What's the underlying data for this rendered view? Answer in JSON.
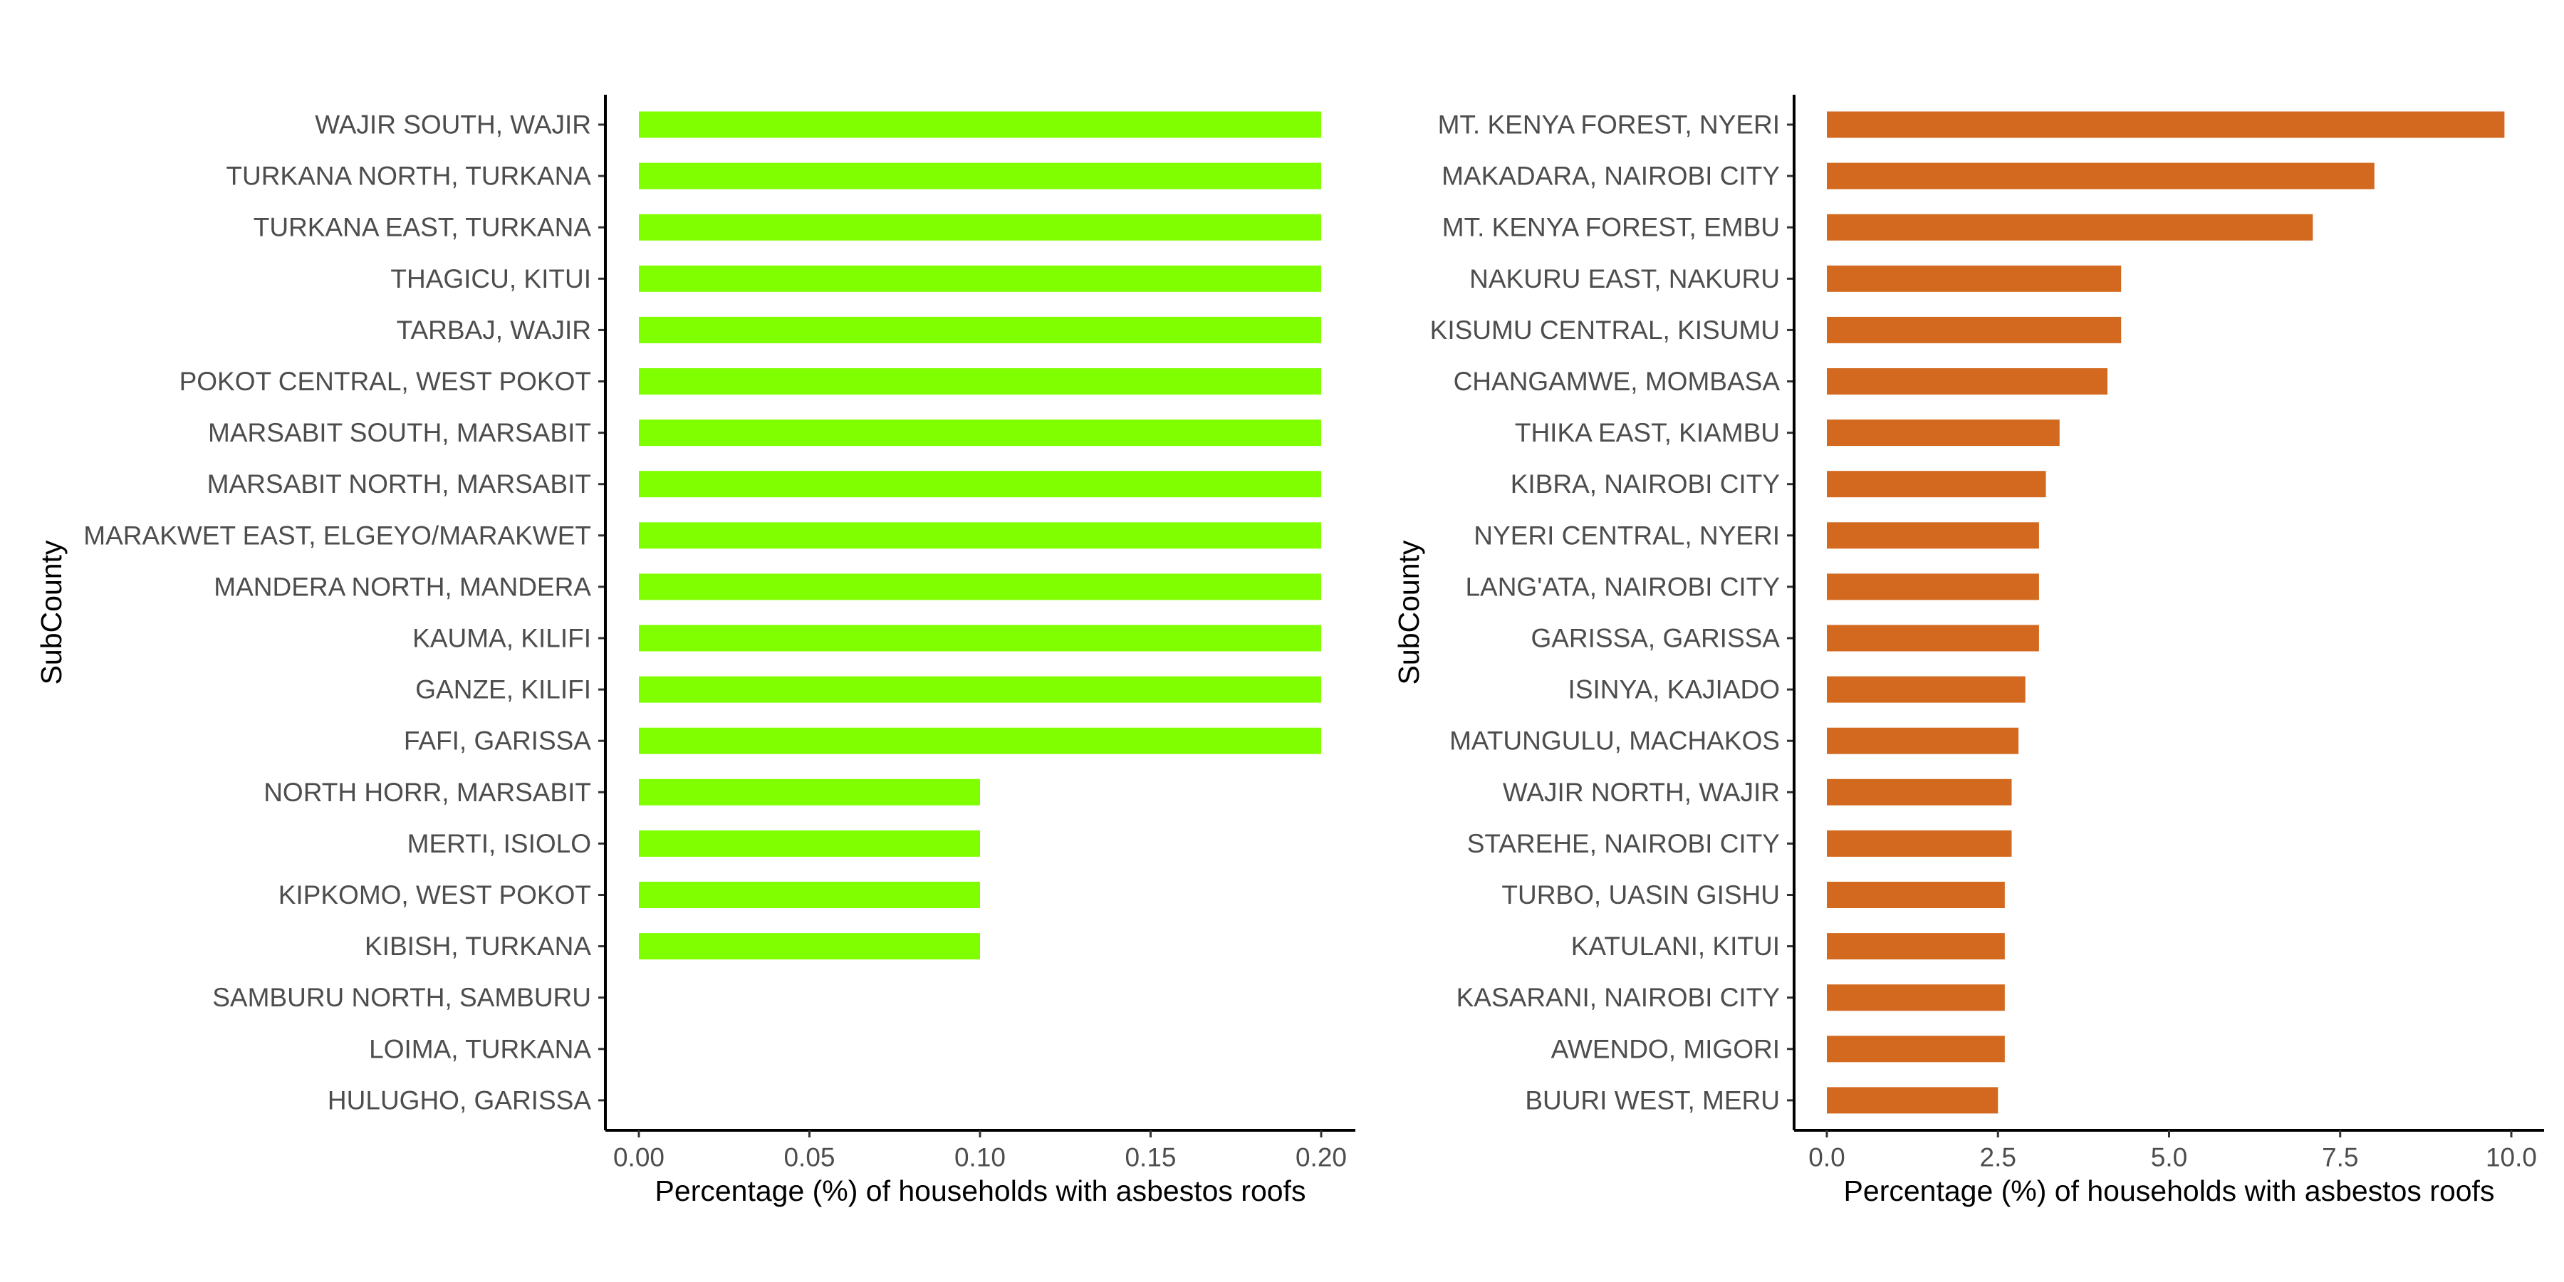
{
  "chart_data": [
    {
      "type": "bar",
      "orientation": "horizontal",
      "xlabel": "Percentage (%) of households with asbestos roofs",
      "ylabel": "SubCounty",
      "xlim": [
        0,
        0.2
      ],
      "xticks": [
        "0.00",
        "0.05",
        "0.10",
        "0.15",
        "0.20"
      ],
      "xtick_values": [
        0,
        0.05,
        0.1,
        0.15,
        0.2
      ],
      "grid": false,
      "bar_color": "#7FFF00",
      "categories": [
        "WAJIR SOUTH, WAJIR",
        "TURKANA NORTH, TURKANA",
        "TURKANA EAST, TURKANA",
        "THAGICU, KITUI",
        "TARBAJ, WAJIR",
        "POKOT CENTRAL, WEST POKOT",
        "MARSABIT SOUTH, MARSABIT",
        "MARSABIT NORTH, MARSABIT",
        "MARAKWET EAST, ELGEYO/MARAKWET",
        "MANDERA NORTH, MANDERA",
        "KAUMA, KILIFI",
        "GANZE, KILIFI",
        "FAFI, GARISSA",
        "NORTH HORR, MARSABIT",
        "MERTI, ISIOLO",
        "KIPKOMO, WEST POKOT",
        "KIBISH, TURKANA",
        "SAMBURU NORTH, SAMBURU",
        "LOIMA, TURKANA",
        "HULUGHO, GARISSA"
      ],
      "values": [
        0.2,
        0.2,
        0.2,
        0.2,
        0.2,
        0.2,
        0.2,
        0.2,
        0.2,
        0.2,
        0.2,
        0.2,
        0.2,
        0.1,
        0.1,
        0.1,
        0.1,
        0,
        0,
        0
      ]
    },
    {
      "type": "bar",
      "orientation": "horizontal",
      "xlabel": "Percentage (%) of households with asbestos roofs",
      "ylabel": "SubCounty",
      "xlim": [
        0,
        10
      ],
      "xticks": [
        "0.0",
        "2.5",
        "5.0",
        "7.5",
        "10.0"
      ],
      "xtick_values": [
        0,
        2.5,
        5,
        7.5,
        10
      ],
      "grid": false,
      "bar_color": "#D2691E",
      "categories": [
        "MT. KENYA FOREST, NYERI",
        "MAKADARA, NAIROBI CITY",
        "MT. KENYA FOREST, EMBU",
        "NAKURU EAST, NAKURU",
        "KISUMU CENTRAL, KISUMU",
        "CHANGAMWE, MOMBASA",
        "THIKA EAST, KIAMBU",
        "KIBRA, NAIROBI CITY",
        "NYERI CENTRAL, NYERI",
        "LANG'ATA, NAIROBI CITY",
        "GARISSA, GARISSA",
        "ISINYA, KAJIADO",
        "MATUNGULU, MACHAKOS",
        "WAJIR NORTH, WAJIR",
        "STAREHE, NAIROBI CITY",
        "TURBO, UASIN GISHU",
        "KATULANI, KITUI",
        "KASARANI, NAIROBI CITY",
        "AWENDO, MIGORI",
        "BUURI WEST, MERU"
      ],
      "values": [
        9.9,
        8.0,
        7.1,
        4.3,
        4.3,
        4.1,
        3.4,
        3.2,
        3.1,
        3.1,
        3.1,
        2.9,
        2.8,
        2.7,
        2.7,
        2.6,
        2.6,
        2.6,
        2.6,
        2.5
      ]
    }
  ]
}
